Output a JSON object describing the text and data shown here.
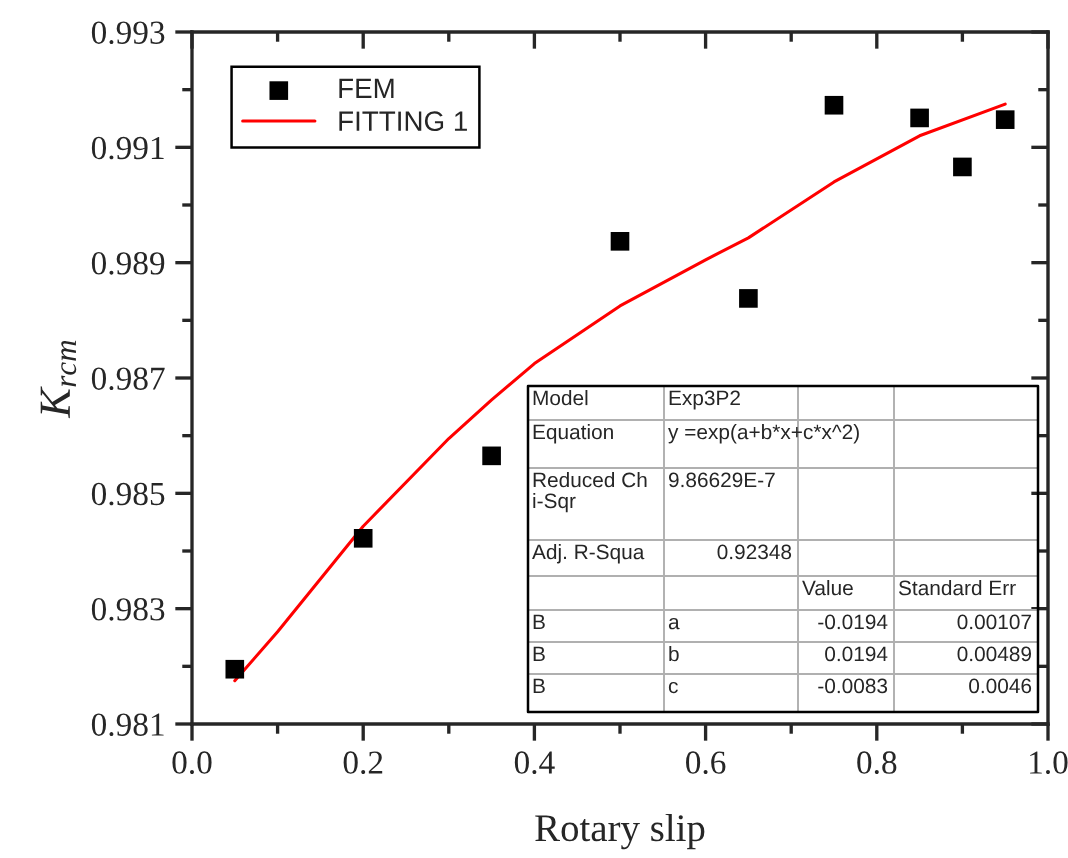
{
  "chart_data": {
    "type": "scatter",
    "xlabel": "Rotary slip",
    "ylabel": "K$_{rcm}$",
    "series": [
      {
        "name": "FEM",
        "color": "#000000",
        "marker": "square",
        "x": [
          0.05,
          0.2,
          0.35,
          0.5,
          0.65,
          0.75,
          0.85,
          0.9,
          0.95
        ],
        "values": [
          0.98195,
          0.98422,
          0.98565,
          0.98937,
          0.98838,
          0.99173,
          0.99151,
          0.99066,
          0.99148
        ]
      },
      {
        "name": "FITTING 1",
        "type": "line",
        "color": "#ff0000",
        "marker": "none",
        "line_style": "solid",
        "x": [
          0.05,
          0.1,
          0.2,
          0.3,
          0.35,
          0.4,
          0.5,
          0.6,
          0.65,
          0.75,
          0.85,
          0.95
        ],
        "values": [
          0.98175,
          0.9826,
          0.98443,
          0.98595,
          0.98662,
          0.98725,
          0.98825,
          0.98905,
          0.98943,
          0.9904,
          0.9912,
          0.99175
        ]
      }
    ],
    "xlim": [
      0.0,
      1.0
    ],
    "xticks": [
      {
        "value": 0.0,
        "label": "0.0"
      },
      {
        "value": 0.1,
        "label": null
      },
      {
        "value": 0.2,
        "label": "0.2"
      },
      {
        "value": 0.3,
        "label": null
      },
      {
        "value": 0.4,
        "label": "0.4"
      },
      {
        "value": 0.5,
        "label": null
      },
      {
        "value": 0.6,
        "label": "0.6"
      },
      {
        "value": 0.7,
        "label": null
      },
      {
        "value": 0.8,
        "label": "0.8"
      },
      {
        "value": 0.9,
        "label": null
      },
      {
        "value": 1.0,
        "label": "1.0"
      }
    ],
    "ylim": [
      0.981,
      0.993
    ],
    "yticks": [
      0.981,
      {
        "value": 0.982,
        "label": null
      },
      0.983,
      {
        "value": 0.984,
        "label": null
      },
      0.985,
      {
        "value": 0.986,
        "label": null
      },
      0.987,
      {
        "value": 0.988,
        "label": null
      },
      0.989,
      {
        "value": 0.99,
        "label": null
      },
      0.991,
      {
        "value": 0.992,
        "label": null
      },
      0.993
    ],
    "grid": false,
    "legend": "top left",
    "annotations": [
      "Model",
      "Exp3P2",
      "Equation",
      "y =exp(a+b*x+c*x^2)",
      "Reduced Ch\ni-Sqr",
      "9.86629E-7",
      "Adj. R-Squa",
      "0.92348",
      "Value",
      "Standard Err",
      "B",
      "a",
      "-0.0194",
      "0.00107",
      "B",
      "b",
      "0.0194",
      "0.00489",
      "B",
      "c",
      "-0.0083",
      "0.0046"
    ]
  }
}
